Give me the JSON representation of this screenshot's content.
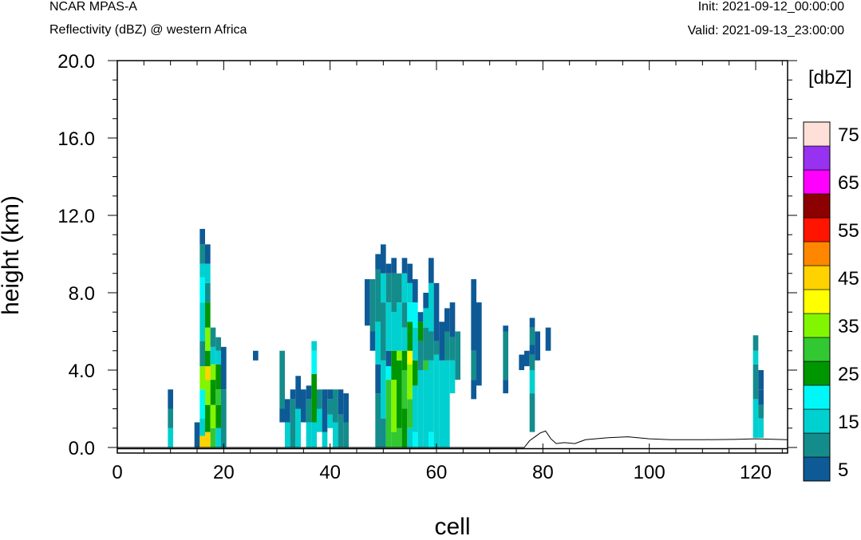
{
  "header": {
    "model": "NCAR MPAS-A",
    "field": "Reflectivity (dBZ) @ western Africa",
    "init": "Init: 2021-09-12_00:00:00",
    "valid": "Valid: 2021-09-13_23:00:00"
  },
  "chart_data": {
    "type": "heatmap",
    "title": "Reflectivity (dBZ) @ western Africa",
    "xlabel": "cell",
    "ylabel": "height (km)",
    "xlim": [
      0,
      126
    ],
    "ylim": [
      -0.3,
      20
    ],
    "x_ticks": [
      0,
      20,
      40,
      60,
      80,
      100,
      120
    ],
    "x_tick_labels": [
      "0",
      "20",
      "40",
      "60",
      "80",
      "100",
      "120"
    ],
    "y_ticks": [
      0,
      4,
      8,
      12,
      16,
      20
    ],
    "y_tick_labels": [
      "0.0",
      "4.0",
      "8.0",
      "12.0",
      "16.0",
      "20.0"
    ],
    "colorbar": {
      "unit": "[dbZ]",
      "levels": [
        5,
        10,
        15,
        20,
        25,
        30,
        35,
        40,
        45,
        50,
        55,
        60,
        65,
        70,
        75
      ],
      "labels": [
        "5",
        "15",
        "25",
        "35",
        "45",
        "55",
        "65",
        "75"
      ],
      "colors": [
        "#0e5a96",
        "#148c8c",
        "#00d0d0",
        "#00f7f7",
        "#009600",
        "#32c832",
        "#82f500",
        "#ffff00",
        "#ffd200",
        "#ff8700",
        "#ff1400",
        "#8c0000",
        "#ff00ff",
        "#9632f0",
        "#ffe0d8"
      ]
    },
    "cells": [
      {
        "x": 10,
        "b": 0,
        "t": 3,
        "v": [
          [
            0,
            1,
            15
          ],
          [
            1,
            2,
            10
          ],
          [
            2,
            3,
            5
          ]
        ]
      },
      {
        "x": 15,
        "b": 0,
        "t": 1.3,
        "v": [
          [
            0,
            1.3,
            5
          ]
        ]
      },
      {
        "x": 16,
        "b": 0,
        "t": 11.3,
        "v": [
          [
            0,
            0.6,
            45
          ],
          [
            0.6,
            1.5,
            15
          ],
          [
            1.5,
            3,
            20
          ],
          [
            3,
            4.2,
            35
          ],
          [
            4.2,
            5.5,
            10
          ],
          [
            5.5,
            7.5,
            15
          ],
          [
            7.5,
            8.8,
            20
          ],
          [
            8.8,
            9.5,
            15
          ],
          [
            9.5,
            10.5,
            10
          ],
          [
            10.5,
            11.3,
            5
          ]
        ]
      },
      {
        "x": 17,
        "b": 0,
        "t": 10.5,
        "v": [
          [
            0,
            0.8,
            45
          ],
          [
            0.8,
            2.2,
            25
          ],
          [
            2.2,
            3.5,
            35
          ],
          [
            3.5,
            4.2,
            45
          ],
          [
            4.2,
            5,
            25
          ],
          [
            5,
            6.2,
            35
          ],
          [
            6.2,
            7.5,
            25
          ],
          [
            7.5,
            8.5,
            10
          ],
          [
            8.5,
            9.5,
            15
          ],
          [
            9.5,
            10.5,
            5
          ]
        ]
      },
      {
        "x": 18,
        "b": 0,
        "t": 6.2,
        "v": [
          [
            0,
            1,
            30
          ],
          [
            1,
            2.2,
            35
          ],
          [
            2.2,
            3.5,
            25
          ],
          [
            3.5,
            4.3,
            35
          ],
          [
            4.3,
            5.2,
            15
          ],
          [
            5.2,
            6.2,
            10
          ]
        ]
      },
      {
        "x": 19,
        "b": 0,
        "t": 5.7,
        "v": [
          [
            0,
            1,
            15
          ],
          [
            1,
            2.2,
            25
          ],
          [
            2.2,
            3,
            30
          ],
          [
            3,
            4.3,
            25
          ],
          [
            4.3,
            5,
            15
          ],
          [
            5,
            5.7,
            10
          ]
        ]
      },
      {
        "x": 20,
        "b": 0,
        "t": 5.2,
        "v": [
          [
            0,
            3,
            10
          ],
          [
            3,
            5.2,
            5
          ]
        ]
      },
      {
        "x": 26,
        "b": 4.5,
        "t": 5,
        "v": [
          [
            4.5,
            5,
            5
          ]
        ]
      },
      {
        "x": 31,
        "b": 1.3,
        "t": 5,
        "v": [
          [
            1.3,
            2,
            5
          ],
          [
            2,
            5,
            10
          ]
        ]
      },
      {
        "x": 32,
        "b": 0,
        "t": 2.5,
        "v": [
          [
            0,
            1.3,
            15
          ],
          [
            1.3,
            2.5,
            5
          ]
        ]
      },
      {
        "x": 33,
        "b": 0,
        "t": 3,
        "v": [
          [
            0,
            2.5,
            10
          ],
          [
            2.5,
            3,
            5
          ]
        ]
      },
      {
        "x": 34,
        "b": 0,
        "t": 3.7,
        "v": [
          [
            0,
            2,
            15
          ],
          [
            2,
            3.7,
            5
          ]
        ]
      },
      {
        "x": 35,
        "b": 1.3,
        "t": 3,
        "v": [
          [
            1.3,
            3,
            5
          ]
        ]
      },
      {
        "x": 36,
        "b": 0,
        "t": 3.2,
        "v": [
          [
            0,
            1.3,
            15
          ],
          [
            1.3,
            2.5,
            10
          ],
          [
            2.5,
            3.2,
            5
          ]
        ]
      },
      {
        "x": 37,
        "b": 0,
        "t": 5.5,
        "v": [
          [
            0,
            1.3,
            15
          ],
          [
            1.3,
            3.8,
            25
          ],
          [
            3.8,
            5,
            20
          ],
          [
            5,
            5.5,
            15
          ]
        ]
      },
      {
        "x": 38,
        "b": 0.8,
        "t": 3,
        "v": [
          [
            0.8,
            2,
            15
          ],
          [
            2,
            3,
            10
          ]
        ]
      },
      {
        "x": 39,
        "b": 0,
        "t": 3,
        "v": [
          [
            0,
            0.8,
            15
          ],
          [
            0.8,
            3,
            5
          ]
        ]
      },
      {
        "x": 40,
        "b": 1,
        "t": 3,
        "v": [
          [
            1,
            1.7,
            15
          ],
          [
            1.7,
            2.5,
            10
          ],
          [
            2.5,
            3,
            5
          ]
        ]
      },
      {
        "x": 41,
        "b": 0,
        "t": 3,
        "v": [
          [
            0,
            1.3,
            15
          ],
          [
            1.3,
            3,
            10
          ]
        ]
      },
      {
        "x": 42,
        "b": 0,
        "t": 3,
        "v": [
          [
            0,
            1.7,
            10
          ],
          [
            1.7,
            3,
            5
          ]
        ]
      },
      {
        "x": 43,
        "b": 0,
        "t": 2.8,
        "v": [
          [
            0,
            1.3,
            10
          ],
          [
            1.3,
            2.8,
            5
          ]
        ]
      },
      {
        "x": 47,
        "b": 6.3,
        "t": 8.7,
        "v": [
          [
            6.3,
            8.7,
            5
          ]
        ]
      },
      {
        "x": 48,
        "b": 5,
        "t": 8.7,
        "v": [
          [
            5,
            6,
            5
          ],
          [
            6,
            8.7,
            10
          ]
        ]
      },
      {
        "x": 49,
        "b": 0,
        "t": 10,
        "v": [
          [
            0,
            2.8,
            10
          ],
          [
            2.8,
            4.3,
            5
          ],
          [
            4.3,
            6.5,
            15
          ],
          [
            6.5,
            9.2,
            10
          ],
          [
            9.2,
            10,
            5
          ]
        ]
      },
      {
        "x": 50,
        "b": 0,
        "t": 10.5,
        "v": [
          [
            0,
            1.5,
            10
          ],
          [
            1.5,
            4.5,
            15
          ],
          [
            4.5,
            7.5,
            10
          ],
          [
            7.5,
            9,
            15
          ],
          [
            9,
            10.5,
            5
          ]
        ]
      },
      {
        "x": 51,
        "b": 0,
        "t": 9.5,
        "v": [
          [
            0,
            3.5,
            30
          ],
          [
            3.5,
            4.2,
            20
          ],
          [
            4.2,
            5,
            5
          ],
          [
            5,
            7.5,
            15
          ],
          [
            7.5,
            9,
            10
          ],
          [
            9,
            9.5,
            5
          ]
        ]
      },
      {
        "x": 52,
        "b": 0,
        "t": 9.8,
        "v": [
          [
            0,
            0.8,
            30
          ],
          [
            0.8,
            3.5,
            35
          ],
          [
            3.5,
            5,
            25
          ],
          [
            5,
            7,
            15
          ],
          [
            7,
            9,
            10
          ],
          [
            9,
            9.8,
            5
          ]
        ]
      },
      {
        "x": 53,
        "b": 0,
        "t": 9,
        "v": [
          [
            0,
            1,
            30
          ],
          [
            1,
            4.5,
            25
          ],
          [
            4.5,
            5,
            35
          ],
          [
            5,
            7.5,
            15
          ],
          [
            7.5,
            9,
            10
          ]
        ]
      },
      {
        "x": 54,
        "b": 0,
        "t": 9.8,
        "v": [
          [
            0,
            2,
            25
          ],
          [
            2,
            4,
            30
          ],
          [
            4,
            5,
            25
          ],
          [
            5,
            6.2,
            15
          ],
          [
            6.2,
            7.5,
            10
          ],
          [
            7.5,
            9,
            15
          ],
          [
            9,
            9.8,
            5
          ]
        ]
      },
      {
        "x": 55,
        "b": 0,
        "t": 9.5,
        "v": [
          [
            0,
            1,
            15
          ],
          [
            1,
            2.5,
            30
          ],
          [
            2.5,
            4.3,
            35
          ],
          [
            4.3,
            5,
            40
          ],
          [
            5,
            6.5,
            25
          ],
          [
            6.5,
            7.5,
            20
          ],
          [
            7.5,
            8.5,
            15
          ],
          [
            8.5,
            9.5,
            5
          ]
        ]
      },
      {
        "x": 56,
        "b": 0,
        "t": 8.7,
        "v": [
          [
            0,
            0.8,
            20
          ],
          [
            0.8,
            3.2,
            15
          ],
          [
            3.2,
            4.5,
            25
          ],
          [
            4.5,
            6.2,
            15
          ],
          [
            6.2,
            7.5,
            20
          ],
          [
            7.5,
            8.7,
            5
          ]
        ]
      },
      {
        "x": 57,
        "b": 0,
        "t": 7,
        "v": [
          [
            0,
            4,
            15
          ],
          [
            4,
            5.5,
            10
          ],
          [
            5.5,
            6.5,
            25
          ],
          [
            6.5,
            7,
            5
          ]
        ]
      },
      {
        "x": 58,
        "b": 0,
        "t": 8,
        "v": [
          [
            0,
            4,
            15
          ],
          [
            4,
            4.5,
            30
          ],
          [
            4.5,
            6.2,
            10
          ],
          [
            6.2,
            7.2,
            15
          ],
          [
            7.2,
            8,
            5
          ]
        ]
      },
      {
        "x": 59,
        "b": 0,
        "t": 9.8,
        "v": [
          [
            0,
            0.8,
            20
          ],
          [
            0.8,
            4.5,
            15
          ],
          [
            4.5,
            6,
            10
          ],
          [
            6,
            8.5,
            15
          ],
          [
            8.5,
            9.8,
            5
          ]
        ]
      },
      {
        "x": 60,
        "b": 0,
        "t": 8.5,
        "v": [
          [
            0,
            4.8,
            15
          ],
          [
            4.8,
            5.5,
            10
          ],
          [
            5.5,
            8,
            5
          ],
          [
            8,
            8.5,
            5
          ]
        ]
      },
      {
        "x": 61,
        "b": 0,
        "t": 6.5,
        "v": [
          [
            0,
            4.5,
            15
          ],
          [
            4.5,
            6.5,
            5
          ]
        ]
      },
      {
        "x": 62,
        "b": 0,
        "t": 7.2,
        "v": [
          [
            0,
            4.5,
            15
          ],
          [
            4.5,
            6,
            10
          ],
          [
            6,
            7.2,
            5
          ]
        ]
      },
      {
        "x": 63,
        "b": 2.8,
        "t": 7.5,
        "v": [
          [
            2.8,
            4.5,
            15
          ],
          [
            4.5,
            5.7,
            10
          ],
          [
            5.7,
            7.5,
            5
          ]
        ]
      },
      {
        "x": 64,
        "b": 3.5,
        "t": 6,
        "v": [
          [
            3.5,
            6,
            10
          ]
        ]
      },
      {
        "x": 67,
        "b": 2.5,
        "t": 8.7,
        "v": [
          [
            2.5,
            3.5,
            5
          ],
          [
            3.5,
            5,
            10
          ],
          [
            5,
            8.7,
            5
          ]
        ]
      },
      {
        "x": 68,
        "b": 3.2,
        "t": 7.5,
        "v": [
          [
            3.2,
            7.5,
            5
          ]
        ]
      },
      {
        "x": 73,
        "b": 2.8,
        "t": 6.3,
        "v": [
          [
            2.8,
            3.5,
            5
          ],
          [
            3.5,
            6,
            10
          ],
          [
            6,
            6.3,
            5
          ]
        ]
      },
      {
        "x": 76,
        "b": 4,
        "t": 4.8,
        "v": [
          [
            4,
            4.8,
            5
          ]
        ]
      },
      {
        "x": 77,
        "b": 4.2,
        "t": 5,
        "v": [
          [
            4.2,
            5,
            5
          ]
        ]
      },
      {
        "x": 78,
        "b": 0.8,
        "t": 6.7,
        "v": [
          [
            0.8,
            2.8,
            10
          ],
          [
            2.8,
            4,
            15
          ],
          [
            4,
            4.8,
            10
          ],
          [
            4.8,
            5.3,
            5
          ],
          [
            5.3,
            6.2,
            10
          ],
          [
            6.2,
            6.7,
            5
          ]
        ]
      },
      {
        "x": 79,
        "b": 4.5,
        "t": 6,
        "v": [
          [
            4.5,
            6,
            5
          ]
        ]
      },
      {
        "x": 81,
        "b": 5,
        "t": 6.2,
        "v": [
          [
            5,
            6.2,
            5
          ]
        ]
      },
      {
        "x": 120,
        "b": 0.5,
        "t": 5.8,
        "v": [
          [
            0.5,
            2.5,
            15
          ],
          [
            2.5,
            4.3,
            10
          ],
          [
            4.3,
            5,
            15
          ],
          [
            5,
            5.8,
            10
          ]
        ]
      },
      {
        "x": 121,
        "b": 0.5,
        "t": 4,
        "v": [
          [
            0.5,
            1.5,
            15
          ],
          [
            1.5,
            2.2,
            10
          ],
          [
            2.2,
            3,
            5
          ],
          [
            3,
            4,
            5
          ]
        ]
      }
    ],
    "terrain": [
      [
        0,
        0
      ],
      [
        76.5,
        0
      ],
      [
        77.5,
        0.35
      ],
      [
        78.5,
        0.55
      ],
      [
        79.5,
        0.75
      ],
      [
        80.5,
        0.85
      ],
      [
        81.5,
        0.45
      ],
      [
        82.5,
        0.2
      ],
      [
        84,
        0.25
      ],
      [
        86,
        0.2
      ],
      [
        88,
        0.4
      ],
      [
        92,
        0.5
      ],
      [
        96,
        0.55
      ],
      [
        100,
        0.45
      ],
      [
        104,
        0.4
      ],
      [
        110,
        0.4
      ],
      [
        116,
        0.42
      ],
      [
        120,
        0.45
      ],
      [
        126,
        0.4
      ]
    ]
  }
}
